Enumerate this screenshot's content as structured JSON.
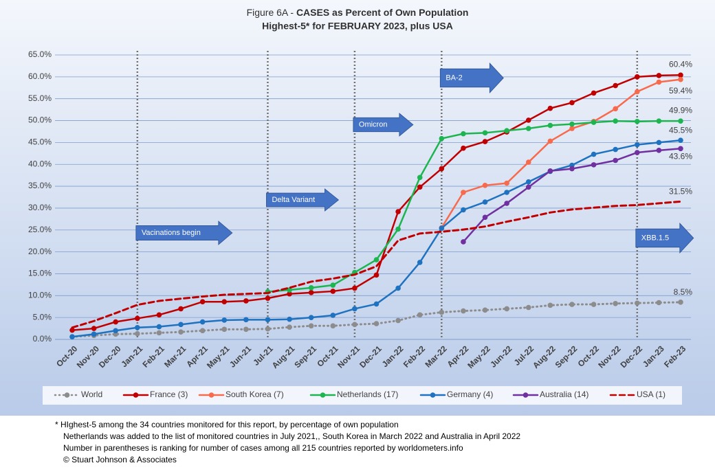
{
  "chart_data": {
    "type": "line",
    "title_lead": "Figure 6A - ",
    "title": "CASES as Percent of Own Population",
    "subtitle": "Highest-5* for FEBRUARY 2023, plus USA",
    "categories": [
      "Oct-20",
      "Nov-20",
      "Dec-20",
      "Jan-21",
      "Feb-21",
      "Mar-21",
      "Apr-21",
      "May-21",
      "Jun-21",
      "Jul-21",
      "Aug-21",
      "Sep-21",
      "Oct-21",
      "Nov-21",
      "Dec-21",
      "Jan-22",
      "Feb-22",
      "Mar-22",
      "Apr-22",
      "May-22",
      "Jun-22",
      "Jul-22",
      "Aug-22",
      "Sep-22",
      "Oct-22",
      "Nov-22",
      "Dec-22",
      "Jan-23",
      "Feb-23"
    ],
    "ylim": [
      0,
      65
    ],
    "yticks": [
      {
        "value": 0,
        "label": "0.0%"
      },
      {
        "value": 5,
        "label": "5.0%"
      },
      {
        "value": 10,
        "label": "10.0%"
      },
      {
        "value": 15,
        "label": "15.0%"
      },
      {
        "value": 20,
        "label": "20.0%"
      },
      {
        "value": 25,
        "label": "25.0%"
      },
      {
        "value": 30,
        "label": "30.0%"
      },
      {
        "value": 35,
        "label": "35.0%"
      },
      {
        "value": 40,
        "label": "40.0%"
      },
      {
        "value": 45,
        "label": "45.0%"
      },
      {
        "value": 50,
        "label": "50.0%"
      },
      {
        "value": 55,
        "label": "55.0%"
      },
      {
        "value": 60,
        "label": "60.0%"
      },
      {
        "value": 65,
        "label": "65.0%"
      }
    ],
    "grid": true,
    "legend": "bottom",
    "series": [
      {
        "name": "World",
        "color": "#8c8c8c",
        "dash": "dotted",
        "markers": true,
        "values": [
          0.6,
          0.9,
          1.2,
          1.3,
          1.5,
          1.7,
          2.0,
          2.3,
          2.3,
          2.4,
          2.8,
          3.1,
          3.1,
          3.4,
          3.6,
          4.3,
          5.6,
          6.2,
          6.5,
          6.7,
          7.0,
          7.3,
          7.8,
          8.0,
          8.0,
          8.2,
          8.3,
          8.4,
          8.5
        ],
        "value_labels": [
          null,
          null,
          null,
          null,
          null,
          null,
          null,
          null,
          null,
          null,
          null,
          null,
          null,
          null,
          null,
          null,
          null,
          null,
          null,
          null,
          null,
          null,
          null,
          null,
          null,
          null,
          null,
          null,
          "8.5%"
        ]
      },
      {
        "name": "France (3)",
        "color": "#c00000",
        "dash": "solid",
        "markers": true,
        "values": [
          2.1,
          2.5,
          4.0,
          4.8,
          5.6,
          7.0,
          8.6,
          8.6,
          8.8,
          9.4,
          10.4,
          10.7,
          11.0,
          11.7,
          14.7,
          29.2,
          34.8,
          39.0,
          43.7,
          45.2,
          47.4,
          50.1,
          52.8,
          54.1,
          56.3,
          58.0,
          60.0,
          60.3,
          60.4
        ],
        "value_labels": [
          null,
          null,
          null,
          null,
          null,
          null,
          null,
          null,
          null,
          null,
          null,
          null,
          null,
          null,
          null,
          null,
          null,
          null,
          null,
          null,
          null,
          null,
          null,
          null,
          null,
          null,
          null,
          null,
          "60.4%"
        ]
      },
      {
        "name": "South Korea (7)",
        "color": "#f86a4c",
        "dash": "solid",
        "markers": true,
        "values": [
          null,
          null,
          null,
          null,
          null,
          null,
          null,
          null,
          null,
          null,
          null,
          null,
          null,
          null,
          null,
          null,
          null,
          25.5,
          33.6,
          35.2,
          35.7,
          40.5,
          45.3,
          48.2,
          49.8,
          52.7,
          56.6,
          58.8,
          59.4
        ],
        "value_labels": [
          null,
          null,
          null,
          null,
          null,
          null,
          null,
          null,
          null,
          null,
          null,
          null,
          null,
          null,
          null,
          null,
          null,
          null,
          null,
          null,
          null,
          null,
          null,
          null,
          null,
          null,
          null,
          null,
          "59.4%"
        ]
      },
      {
        "name": "Netherlands (17)",
        "color": "#1db550",
        "dash": "solid",
        "markers": true,
        "values": [
          null,
          null,
          null,
          null,
          null,
          null,
          null,
          null,
          null,
          10.9,
          11.3,
          11.8,
          12.4,
          15.3,
          18.2,
          25.2,
          37.0,
          45.9,
          47.0,
          47.2,
          47.7,
          48.2,
          48.9,
          49.2,
          49.6,
          49.9,
          49.8,
          49.9,
          49.9
        ],
        "value_labels": [
          null,
          null,
          null,
          null,
          null,
          null,
          null,
          null,
          null,
          null,
          null,
          null,
          null,
          null,
          null,
          null,
          null,
          null,
          null,
          null,
          null,
          null,
          null,
          null,
          null,
          null,
          null,
          null,
          "49.9%"
        ]
      },
      {
        "name": "Germany (4)",
        "color": "#1f72bf",
        "dash": "solid",
        "markers": true,
        "values": [
          0.6,
          1.2,
          2.0,
          2.7,
          2.9,
          3.4,
          4.0,
          4.4,
          4.5,
          4.5,
          4.6,
          5.0,
          5.5,
          7.0,
          8.1,
          11.7,
          17.6,
          25.4,
          29.6,
          31.4,
          33.6,
          36.0,
          38.4,
          39.8,
          42.3,
          43.4,
          44.5,
          45.0,
          45.5
        ],
        "value_labels": [
          null,
          null,
          null,
          null,
          null,
          null,
          null,
          null,
          null,
          null,
          null,
          null,
          null,
          null,
          null,
          null,
          null,
          null,
          null,
          null,
          null,
          null,
          null,
          null,
          null,
          null,
          null,
          null,
          "45.5%"
        ]
      },
      {
        "name": "Australia (14)",
        "color": "#7030a0",
        "dash": "solid",
        "markers": true,
        "values": [
          null,
          null,
          null,
          null,
          null,
          null,
          null,
          null,
          null,
          null,
          null,
          null,
          null,
          null,
          null,
          null,
          null,
          null,
          22.3,
          27.9,
          31.1,
          34.8,
          38.5,
          39.0,
          39.9,
          40.9,
          42.7,
          43.2,
          43.6
        ],
        "value_labels": [
          null,
          null,
          null,
          null,
          null,
          null,
          null,
          null,
          null,
          null,
          null,
          null,
          null,
          null,
          null,
          null,
          null,
          null,
          null,
          null,
          null,
          null,
          null,
          null,
          null,
          null,
          null,
          null,
          "43.6%"
        ]
      },
      {
        "name": "USA (1)",
        "color": "#c00000",
        "dash": "dashed",
        "markers": false,
        "values": [
          2.7,
          4.2,
          6.0,
          7.9,
          8.8,
          9.3,
          9.8,
          10.2,
          10.4,
          10.6,
          11.8,
          13.2,
          13.9,
          14.8,
          16.7,
          22.6,
          24.2,
          24.6,
          25.1,
          25.8,
          26.9,
          27.9,
          29.0,
          29.7,
          30.1,
          30.5,
          30.7,
          31.1,
          31.5
        ],
        "value_labels": [
          null,
          null,
          null,
          null,
          null,
          null,
          null,
          null,
          null,
          null,
          null,
          null,
          null,
          null,
          null,
          null,
          null,
          null,
          null,
          null,
          null,
          null,
          null,
          null,
          null,
          null,
          null,
          null,
          "31.5%"
        ]
      }
    ],
    "annotations": [
      {
        "text": "Vacinations begin",
        "category": "Jan-21"
      },
      {
        "text": "Delta Variant",
        "category": "Jul-21"
      },
      {
        "text": "Omicron",
        "category": "Nov-21"
      },
      {
        "text": "BA-2",
        "category": "Mar-22"
      },
      {
        "text": "XBB.1.5",
        "category": "Dec-22"
      }
    ],
    "footnotes": [
      "* HIghest-5 among the 34 countries monitored for this report, by percentage of own population",
      "Netherlands was added to the list of monitored countries in July 2021,, South Korea in March 2022 and Australia in April 2022",
      "Number in parentheses is ranking for number of cases among all 215 countries reported by worldometers.info",
      "© Stuart Johnson & Associates"
    ]
  }
}
